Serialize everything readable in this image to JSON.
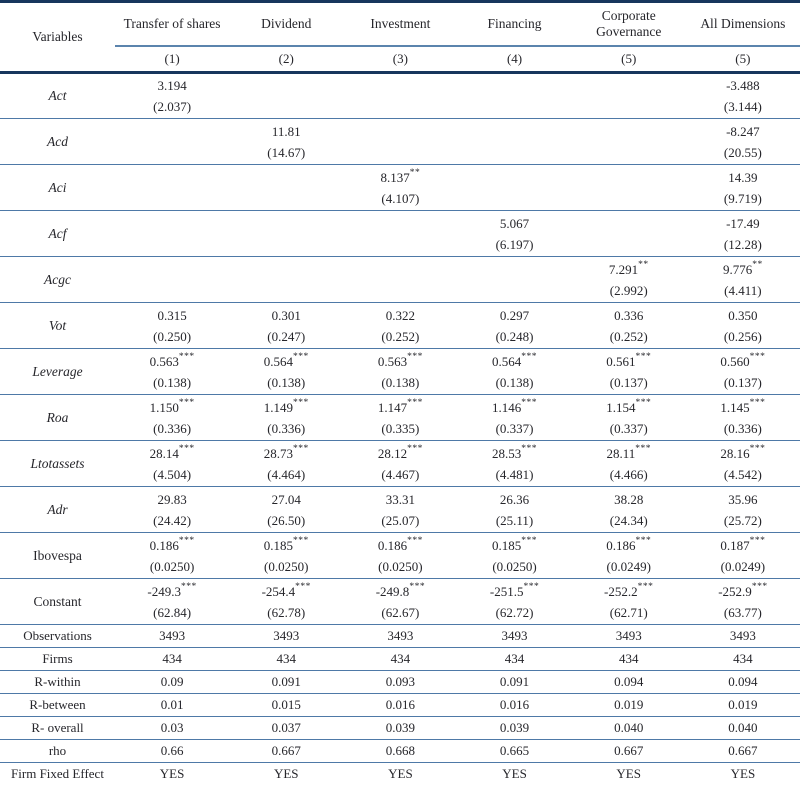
{
  "table": {
    "header": {
      "variables_label": "Variables",
      "columns": [
        {
          "title": "Transfer of shares",
          "number": "(1)"
        },
        {
          "title": "Dividend",
          "number": "(2)"
        },
        {
          "title": "Investment",
          "number": "(3)"
        },
        {
          "title": "Financing",
          "number": "(4)"
        },
        {
          "title": "Corporate Governance",
          "number": "(5)"
        },
        {
          "title": "All Dimensions",
          "number": "(5)"
        }
      ]
    },
    "variable_rows": [
      {
        "label": "Act",
        "italic": true,
        "cells": [
          {
            "coef": "3.194",
            "stars": "",
            "se": "(2.037)"
          },
          null,
          null,
          null,
          null,
          {
            "coef": "-3.488",
            "stars": "",
            "se": "(3.144)"
          }
        ]
      },
      {
        "label": "Acd",
        "italic": true,
        "cells": [
          null,
          {
            "coef": "11.81",
            "stars": "",
            "se": "(14.67)"
          },
          null,
          null,
          null,
          {
            "coef": "-8.247",
            "stars": "",
            "se": "(20.55)"
          }
        ]
      },
      {
        "label": "Aci",
        "italic": true,
        "cells": [
          null,
          null,
          {
            "coef": "8.137",
            "stars": "**",
            "se": "(4.107)"
          },
          null,
          null,
          {
            "coef": "14.39",
            "stars": "",
            "se": "(9.719)"
          }
        ]
      },
      {
        "label": "Acf",
        "italic": true,
        "cells": [
          null,
          null,
          null,
          {
            "coef": "5.067",
            "stars": "",
            "se": "(6.197)"
          },
          null,
          {
            "coef": "-17.49",
            "stars": "",
            "se": "(12.28)"
          }
        ]
      },
      {
        "label": "Acgc",
        "italic": true,
        "cells": [
          null,
          null,
          null,
          null,
          {
            "coef": "7.291",
            "stars": "**",
            "se": "(2.992)"
          },
          {
            "coef": "9.776",
            "stars": "**",
            "se": "(4.411)"
          }
        ]
      },
      {
        "label": "Vot",
        "italic": true,
        "cells": [
          {
            "coef": "0.315",
            "stars": "",
            "se": "(0.250)"
          },
          {
            "coef": "0.301",
            "stars": "",
            "se": "(0.247)"
          },
          {
            "coef": "0.322",
            "stars": "",
            "se": "(0.252)"
          },
          {
            "coef": "0.297",
            "stars": "",
            "se": "(0.248)"
          },
          {
            "coef": "0.336",
            "stars": "",
            "se": "(0.252)"
          },
          {
            "coef": "0.350",
            "stars": "",
            "se": "(0.256)"
          }
        ]
      },
      {
        "label": "Leverage",
        "italic": true,
        "cells": [
          {
            "coef": "0.563",
            "stars": "***",
            "se": "(0.138)"
          },
          {
            "coef": "0.564",
            "stars": "***",
            "se": "(0.138)"
          },
          {
            "coef": "0.563",
            "stars": "***",
            "se": "(0.138)"
          },
          {
            "coef": "0.564",
            "stars": "***",
            "se": "(0.138)"
          },
          {
            "coef": "0.561",
            "stars": "***",
            "se": "(0.137)"
          },
          {
            "coef": "0.560",
            "stars": "***",
            "se": "(0.137)"
          }
        ]
      },
      {
        "label": "Roa",
        "italic": true,
        "cells": [
          {
            "coef": "1.150",
            "stars": "***",
            "se": "(0.336)"
          },
          {
            "coef": "1.149",
            "stars": "***",
            "se": "(0.336)"
          },
          {
            "coef": "1.147",
            "stars": "***",
            "se": "(0.335)"
          },
          {
            "coef": "1.146",
            "stars": "***",
            "se": "(0.337)"
          },
          {
            "coef": "1.154",
            "stars": "***",
            "se": "(0.337)"
          },
          {
            "coef": "1.145",
            "stars": "***",
            "se": "(0.336)"
          }
        ]
      },
      {
        "label": "Ltotassets",
        "italic": true,
        "cells": [
          {
            "coef": "28.14",
            "stars": "***",
            "se": "(4.504)"
          },
          {
            "coef": "28.73",
            "stars": "***",
            "se": "(4.464)"
          },
          {
            "coef": "28.12",
            "stars": "***",
            "se": "(4.467)"
          },
          {
            "coef": "28.53",
            "stars": "***",
            "se": "(4.481)"
          },
          {
            "coef": "28.11",
            "stars": "***",
            "se": "(4.466)"
          },
          {
            "coef": "28.16",
            "stars": "***",
            "se": "(4.542)"
          }
        ]
      },
      {
        "label": "Adr",
        "italic": true,
        "cells": [
          {
            "coef": "29.83",
            "stars": "",
            "se": "(24.42)"
          },
          {
            "coef": "27.04",
            "stars": "",
            "se": "(26.50)"
          },
          {
            "coef": "33.31",
            "stars": "",
            "se": "(25.07)"
          },
          {
            "coef": "26.36",
            "stars": "",
            "se": "(25.11)"
          },
          {
            "coef": "38.28",
            "stars": "",
            "se": "(24.34)"
          },
          {
            "coef": "35.96",
            "stars": "",
            "se": "(25.72)"
          }
        ]
      },
      {
        "label": "Ibovespa",
        "italic": false,
        "cells": [
          {
            "coef": "0.186",
            "stars": "***",
            "se": "(0.0250)"
          },
          {
            "coef": "0.185",
            "stars": "***",
            "se": "(0.0250)"
          },
          {
            "coef": "0.186",
            "stars": "***",
            "se": "(0.0250)"
          },
          {
            "coef": "0.185",
            "stars": "***",
            "se": "(0.0250)"
          },
          {
            "coef": "0.186",
            "stars": "***",
            "se": "(0.0249)"
          },
          {
            "coef": "0.187",
            "stars": "***",
            "se": "(0.0249)"
          }
        ]
      },
      {
        "label": "Constant",
        "italic": false,
        "cells": [
          {
            "coef": "-249.3",
            "stars": "***",
            "se": "(62.84)"
          },
          {
            "coef": "-254.4",
            "stars": "***",
            "se": "(62.78)"
          },
          {
            "coef": "-249.8",
            "stars": "***",
            "se": "(62.67)"
          },
          {
            "coef": "-251.5",
            "stars": "***",
            "se": "(62.72)"
          },
          {
            "coef": "-252.2",
            "stars": "***",
            "se": "(62.71)"
          },
          {
            "coef": "-252.9",
            "stars": "***",
            "se": "(63.77)"
          }
        ]
      }
    ],
    "stat_rows": [
      {
        "label": "Observations",
        "values": [
          "3493",
          "3493",
          "3493",
          "3493",
          "3493",
          "3493"
        ]
      },
      {
        "label": "Firms",
        "values": [
          "434",
          "434",
          "434",
          "434",
          "434",
          "434"
        ]
      },
      {
        "label": "R-within",
        "values": [
          "0.09",
          "0.091",
          "0.093",
          "0.091",
          "0.094",
          "0.094"
        ]
      },
      {
        "label": "R-between",
        "values": [
          "0.01",
          "0.015",
          "0.016",
          "0.016",
          "0.019",
          "0.019"
        ]
      },
      {
        "label": "R- overall",
        "values": [
          "0.03",
          "0.037",
          "0.039",
          "0.039",
          "0.040",
          "0.040"
        ]
      },
      {
        "label": "rho",
        "values": [
          "0.66",
          "0.667",
          "0.668",
          "0.665",
          "0.667",
          "0.667"
        ]
      },
      {
        "label": "Firm Fixed Effect",
        "values": [
          "YES",
          "YES",
          "YES",
          "YES",
          "YES",
          "YES"
        ]
      }
    ],
    "colors": {
      "rule_heavy": "#17365d",
      "rule_light": "#4e79a7",
      "rule_spanner": "#5b84ad",
      "text": "#26262b"
    }
  }
}
